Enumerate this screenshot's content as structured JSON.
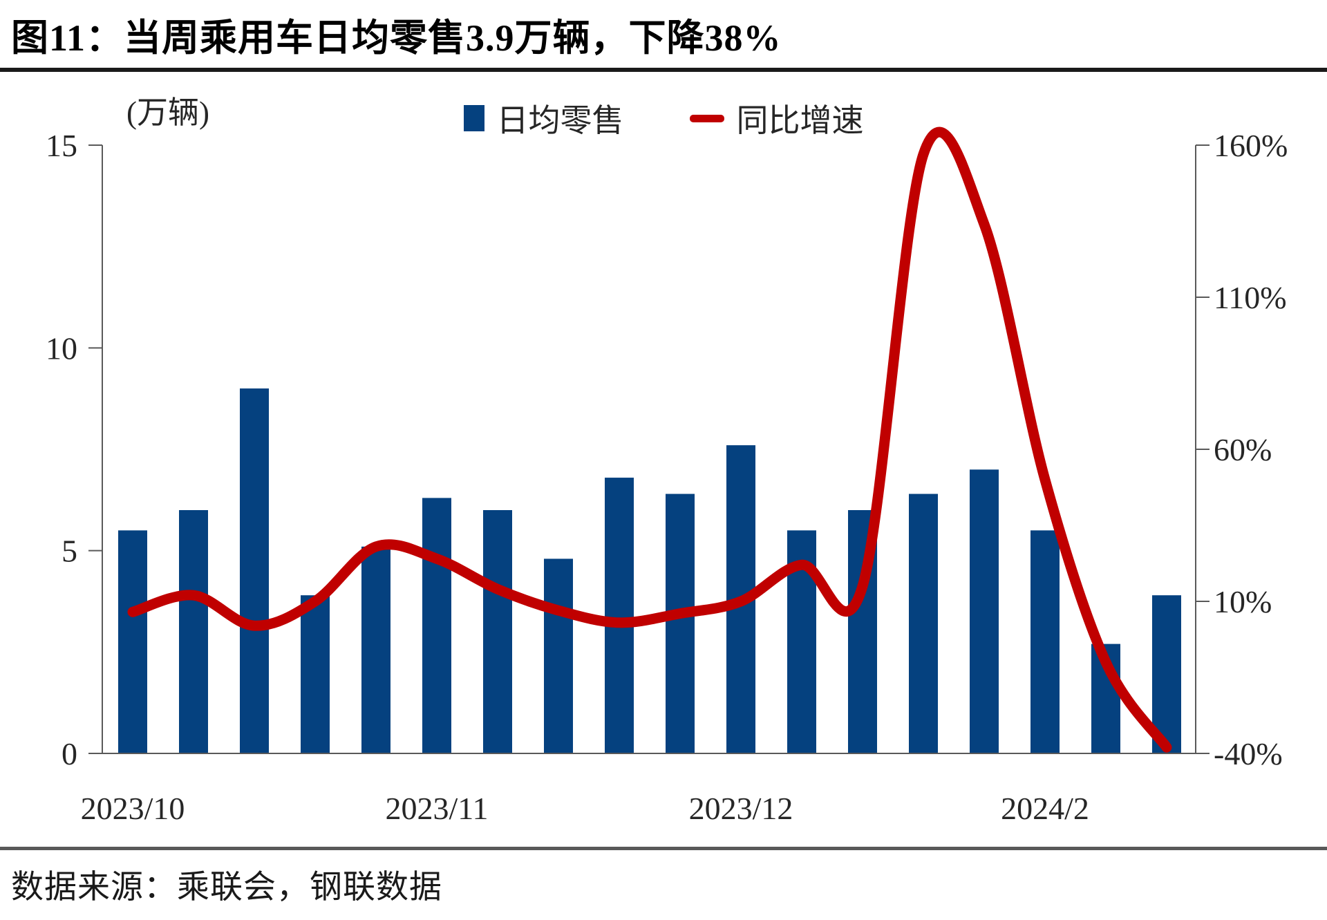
{
  "title": "图11：当周乘用车日均零售3.9万辆，下降38%",
  "source": "数据来源：乘联会，钢联数据",
  "legend": {
    "bars_label": "日均零售",
    "line_label": "同比增速"
  },
  "colors": {
    "bar": "#05417f",
    "line": "#c00000",
    "axis": "#595959",
    "text": "#262626",
    "title_rule": "#1a1a1a",
    "source_rule": "#595959"
  },
  "left_axis": {
    "unit": "(万辆)",
    "ticks": [
      "0",
      "5",
      "10",
      "15"
    ],
    "min": 0,
    "max": 15
  },
  "right_axis": {
    "ticks": [
      "-40%",
      "10%",
      "60%",
      "110%",
      "160%"
    ],
    "min": -40,
    "max": 160
  },
  "chart_data": {
    "type": "bar",
    "subtype": "bar+line dual axis, weekly data",
    "title": "当周乘用车日均零售3.9万辆，下降38%",
    "x_tick_labels": [
      {
        "index": 0,
        "label": "2023/10"
      },
      {
        "index": 5,
        "label": "2023/11"
      },
      {
        "index": 10,
        "label": "2023/12"
      },
      {
        "index": 15,
        "label": "2024/2"
      }
    ],
    "series": [
      {
        "name": "日均零售",
        "type": "bar",
        "axis": "left",
        "unit": "万辆",
        "values": [
          5.5,
          6.0,
          9.0,
          3.9,
          5.1,
          6.3,
          6.0,
          4.8,
          6.8,
          6.4,
          7.6,
          5.5,
          6.0,
          6.4,
          7.0,
          5.5,
          2.7,
          3.9
        ]
      },
      {
        "name": "同比增速",
        "type": "line",
        "axis": "right",
        "unit": "%",
        "values": [
          6.5,
          12,
          2,
          10,
          28,
          24,
          14,
          7,
          3,
          6,
          10,
          22,
          15,
          157,
          134,
          50,
          -10,
          -38
        ]
      }
    ],
    "left_ylim": [
      0,
      15
    ],
    "right_ylim": [
      -40,
      160
    ],
    "grid": false,
    "legend_position": "top-center"
  }
}
